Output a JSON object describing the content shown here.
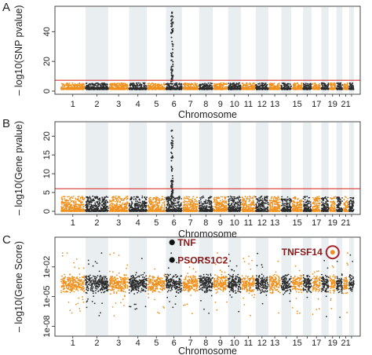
{
  "colors": {
    "orange": "#f0901e",
    "dark": "#2b2b2b",
    "threshold": "#d93a3a",
    "band": "#e9eef0",
    "highlight": "#a3242a"
  },
  "chart_data": [
    {
      "type": "scatter",
      "panel": "A",
      "xlabel": "Chromosome",
      "ylabel": "– log10(SNP pvalue)",
      "ylim": [
        0,
        55
      ],
      "yticks": [
        0,
        20,
        40
      ],
      "chromosomes": [
        1,
        2,
        3,
        4,
        5,
        6,
        7,
        8,
        9,
        10,
        11,
        12,
        13,
        14,
        15,
        16,
        17,
        18,
        19,
        20,
        21,
        22
      ],
      "xtick_labels": [
        "1",
        "2",
        "3",
        "4",
        "5",
        "6",
        "7",
        "8",
        "9",
        "10",
        "11",
        "12",
        "13",
        "15",
        "17",
        "19",
        "21"
      ],
      "threshold": 7.3,
      "baseline_max": 6,
      "peaks": [
        {
          "chromosome": 6,
          "max": 53
        }
      ]
    },
    {
      "type": "scatter",
      "panel": "B",
      "xlabel": "Chromosome",
      "ylabel": "– log10(Gene pvalue)",
      "ylim": [
        0,
        23
      ],
      "yticks": [
        0,
        5,
        10,
        15,
        20
      ],
      "chromosomes": [
        1,
        2,
        3,
        4,
        5,
        6,
        7,
        8,
        9,
        10,
        11,
        12,
        13,
        14,
        15,
        16,
        17,
        18,
        19,
        20,
        21,
        22
      ],
      "xtick_labels": [
        "1",
        "2",
        "3",
        "4",
        "5",
        "6",
        "7",
        "8",
        "9",
        "10",
        "11",
        "12",
        "13",
        "15",
        "17",
        "19",
        "21"
      ],
      "threshold": 6.0,
      "baseline_max": 4,
      "peaks": [
        {
          "chromosome": 6,
          "max": 21.5
        }
      ]
    },
    {
      "type": "scatter",
      "panel": "C",
      "xlabel": "Chromosome",
      "ylabel": "– log10(Gene Score)",
      "yscale": "log",
      "ylim": [
        1e-09,
        10
      ],
      "ytick_labels": [
        "1e-08",
        "1e-05",
        "1e-02"
      ],
      "ytick_values": [
        1e-08,
        1e-05,
        0.01
      ],
      "chromosomes": [
        1,
        2,
        3,
        4,
        5,
        6,
        7,
        8,
        9,
        10,
        11,
        12,
        13,
        14,
        15,
        16,
        17,
        18,
        19,
        20,
        21,
        22
      ],
      "xtick_labels": [
        "1",
        "2",
        "3",
        "4",
        "5",
        "6",
        "7",
        "8",
        "9",
        "10",
        "11",
        "12",
        "13",
        "15",
        "17",
        "19",
        "21"
      ],
      "highlights": [
        {
          "gene": "TNF",
          "chromosome": 6,
          "score": 3
        },
        {
          "gene": "PSORS1C2",
          "chromosome": 6,
          "score": 0.05
        },
        {
          "gene": "TNFSF14",
          "chromosome": 19,
          "score": 0.3
        }
      ]
    }
  ]
}
